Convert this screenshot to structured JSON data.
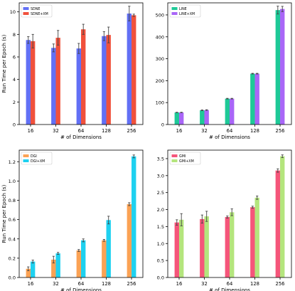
{
  "chart_data": [
    {
      "type": "bar",
      "categories": [
        "16",
        "32",
        "64",
        "128",
        "256"
      ],
      "xlabel": "# of Dimensions",
      "ylabel": "Run Time per Epoch (s)",
      "ylim": [
        0,
        10.8
      ],
      "yticks": [
        0,
        2,
        4,
        6,
        8,
        10
      ],
      "ytick_labels": [
        "0",
        "2",
        "4",
        "6",
        "8",
        "10"
      ],
      "legend_position": "top-left",
      "series": [
        {
          "name": "SDNE",
          "color": "#6270f5",
          "values": [
            7.5,
            6.8,
            6.75,
            7.85,
            9.85
          ],
          "errors": [
            0.3,
            0.35,
            0.45,
            0.4,
            0.65
          ]
        },
        {
          "name": "SDNE+XM",
          "color": "#f0513c",
          "values": [
            7.4,
            7.7,
            8.45,
            7.95,
            9.7
          ],
          "errors": [
            0.6,
            0.65,
            0.45,
            0.7,
            0.1
          ]
        }
      ]
    },
    {
      "type": "bar",
      "categories": [
        "16",
        "32",
        "64",
        "128",
        "256"
      ],
      "xlabel": "# of Dimensions",
      "ylabel": "",
      "ylim": [
        0,
        555
      ],
      "yticks": [
        0,
        100,
        200,
        300,
        400,
        500
      ],
      "ytick_labels": [
        "0",
        "100",
        "200",
        "300",
        "400",
        "500"
      ],
      "legend_position": "top-left",
      "series": [
        {
          "name": "LINE",
          "color": "#1ec997",
          "values": [
            55,
            65,
            118,
            232,
            522
          ],
          "errors": [
            1,
            1.5,
            1.5,
            1.5,
            18
          ]
        },
        {
          "name": "LINE+XM",
          "color": "#a966f7",
          "values": [
            55,
            66,
            118,
            232,
            527
          ],
          "errors": [
            1,
            1.5,
            1.5,
            1.5,
            12
          ]
        }
      ]
    },
    {
      "type": "bar",
      "categories": [
        "16",
        "32",
        "64",
        "128",
        "256"
      ],
      "xlabel": "# of Dimensions",
      "ylabel": "Run Time per Epoch (s)",
      "ylim": [
        0,
        1.32
      ],
      "yticks": [
        0,
        0.2,
        0.4,
        0.6,
        0.8,
        1.0,
        1.2
      ],
      "ytick_labels": [
        "0.0",
        "0.2",
        "0.4",
        "0.6",
        "0.8",
        "1.0",
        "1.2"
      ],
      "legend_position": "top-left",
      "series": [
        {
          "name": "DGI",
          "color": "#fba254",
          "values": [
            0.09,
            0.185,
            0.28,
            0.385,
            0.76
          ],
          "errors": [
            0.02,
            0.035,
            0.01,
            0.01,
            0.015
          ]
        },
        {
          "name": "DGI+XM",
          "color": "#1ed1f0",
          "values": [
            0.165,
            0.25,
            0.385,
            0.595,
            1.255
          ],
          "errors": [
            0.015,
            0.01,
            0.015,
            0.04,
            0.015
          ]
        }
      ]
    },
    {
      "type": "bar",
      "categories": [
        "16",
        "32",
        "64",
        "128",
        "256"
      ],
      "xlabel": "# of Dimensions",
      "ylabel": "",
      "ylim": [
        0,
        3.75
      ],
      "yticks": [
        0,
        0.5,
        1.0,
        1.5,
        2.0,
        2.5,
        3.0,
        3.5
      ],
      "ytick_labels": [
        "0.0",
        "0.5",
        "1.0",
        "1.5",
        "2.0",
        "2.5",
        "3.0",
        "3.5"
      ],
      "legend_position": "top-left",
      "series": [
        {
          "name": "GMI",
          "color": "#f5557a",
          "values": [
            1.62,
            1.72,
            1.78,
            2.07,
            3.15
          ],
          "errors": [
            0.08,
            0.12,
            0.03,
            0.03,
            0.05
          ]
        },
        {
          "name": "GMI+XM",
          "color": "#b4e57d",
          "values": [
            1.7,
            1.8,
            1.92,
            2.35,
            3.57
          ],
          "errors": [
            0.18,
            0.15,
            0.1,
            0.05,
            0.04
          ]
        }
      ]
    }
  ]
}
